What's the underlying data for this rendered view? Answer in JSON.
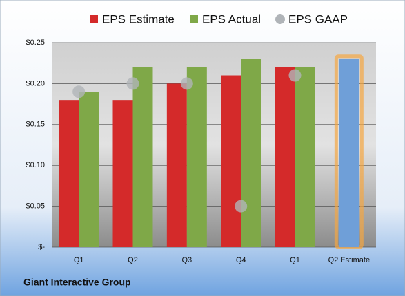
{
  "chart_data": {
    "type": "bar",
    "title": "Giant Interactive Group",
    "categories": [
      "Q1",
      "Q2",
      "Q3",
      "Q4",
      "Q1",
      "Q2 Estimate"
    ],
    "series": [
      {
        "name": "EPS Estimate",
        "color": "#d42a2a",
        "values": [
          0.18,
          0.18,
          0.2,
          0.21,
          0.22,
          0.23
        ]
      },
      {
        "name": "EPS Actual",
        "color": "#7fa848",
        "values": [
          0.19,
          0.22,
          0.22,
          0.23,
          0.22,
          null
        ]
      },
      {
        "name": "EPS GAAP",
        "color": "#b0b4b8",
        "values": [
          0.19,
          0.2,
          0.2,
          0.05,
          0.21,
          null
        ]
      }
    ],
    "estimate_highlight_color": "#6f9fd8",
    "estimate_glow_color": "#f5a742",
    "ylim": [
      0,
      0.25
    ],
    "yticks": [
      {
        "value": 0,
        "label": "$-"
      },
      {
        "value": 0.05,
        "label": "$0.05"
      },
      {
        "value": 0.1,
        "label": "$0.10"
      },
      {
        "value": 0.15,
        "label": "$0.15"
      },
      {
        "value": 0.2,
        "label": "$0.20"
      },
      {
        "value": 0.25,
        "label": "$0.25"
      }
    ],
    "grid": true
  }
}
